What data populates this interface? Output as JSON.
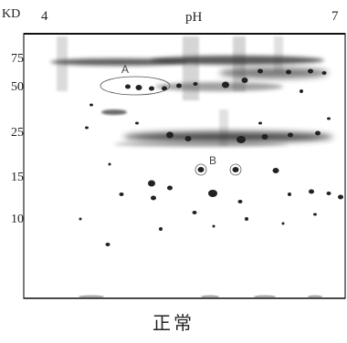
{
  "gel": {
    "kd_label": "KD",
    "ph_label": "pH",
    "ph_low": "4",
    "ph_high": "7",
    "mw_markers": [
      "75",
      "50",
      "25",
      "15",
      "10"
    ],
    "spot_labels": [
      "A",
      "B"
    ]
  },
  "caption": "正常"
}
